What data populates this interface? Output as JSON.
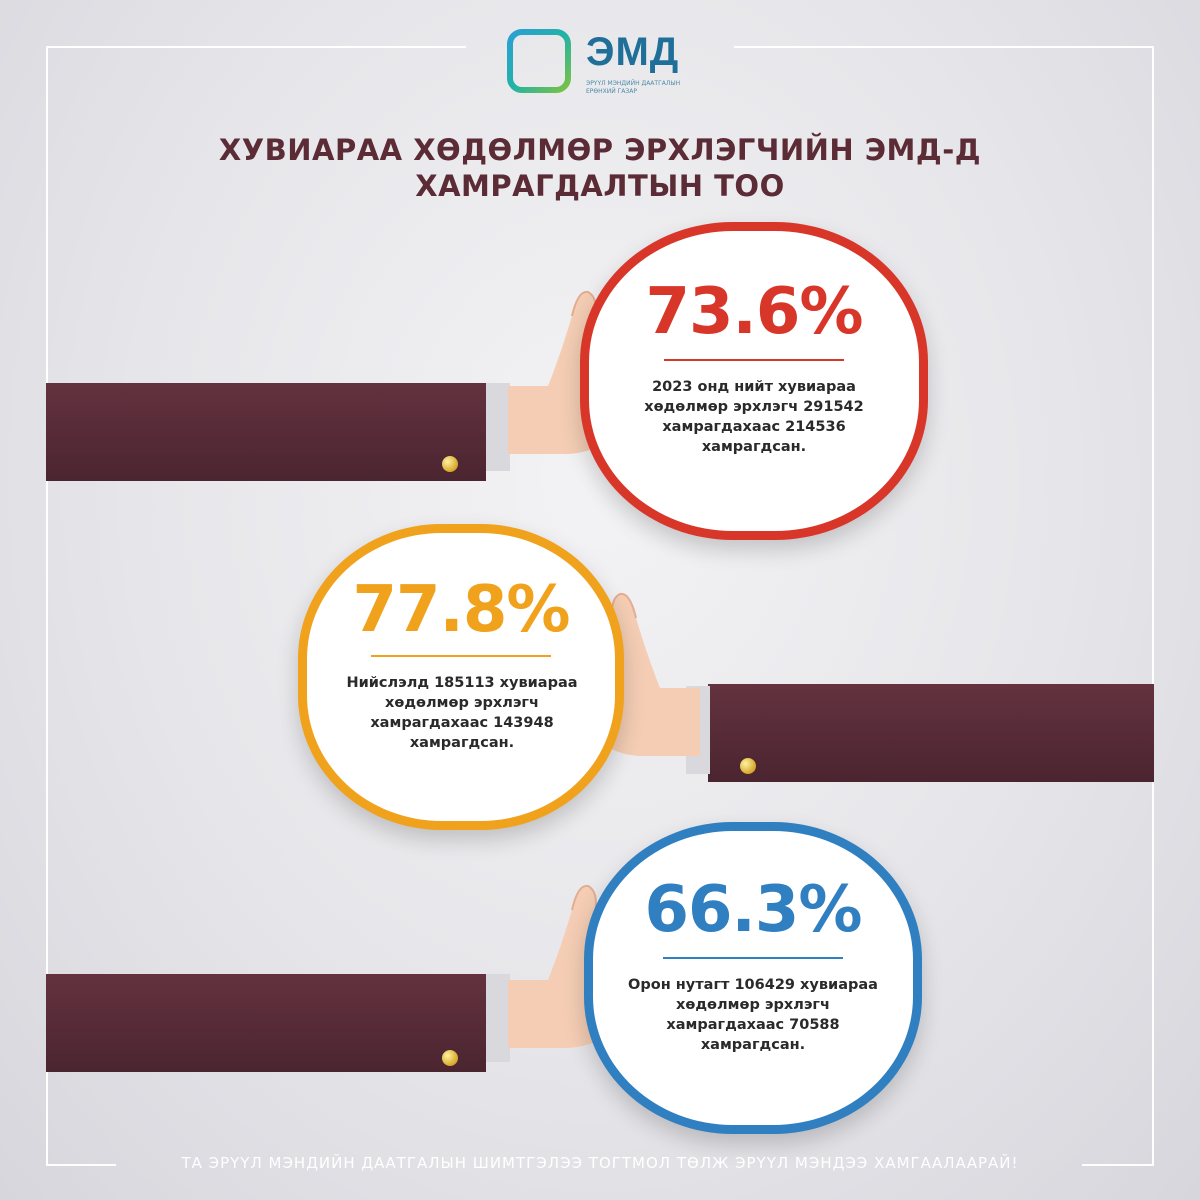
{
  "logo": {
    "name": "ЭМД",
    "subtitle": "ЭРҮҮЛ МЭНДИЙН ДААТГАЛЫН ЕРӨНХИЙ ГАЗАР",
    "icon": "knot-logo-icon"
  },
  "title": {
    "line1": "ХУВИАРАА ХӨДӨЛМӨР ЭРХЛЭГЧИЙН ЭМД-Д",
    "line2": "ХАМРАГДАЛТЫН ТОО"
  },
  "stats": [
    {
      "percent": "73.6%",
      "description": "2023 онд нийт  хувиараа хөдөлмөр эрхлэгч 291542 хамрагдахаас 214536 хамрагдсан.",
      "color": "#d9362a"
    },
    {
      "percent": "77.8%",
      "description": "Нийслэлд 185113  хувиараа хөдөлмөр эрхлэгч хамрагдахаас 143948 хамрагдсан.",
      "color": "#f0a21c"
    },
    {
      "percent": "66.3%",
      "description": "Орон нутагт 106429 хувиараа хөдөлмөр эрхлэгч хамрагдахаас 70588 хамрагдсан.",
      "color": "#2f7fc1"
    }
  ],
  "footer": "ТА ЭРҮҮЛ МЭНДИЙН ДААТГАЛЫН ШИМТГЭЛЭЭ ТОГТМОЛ ТӨЛЖ ЭРҮҮЛ МЭНДЭЭ ХАМГААЛААРАЙ!"
}
